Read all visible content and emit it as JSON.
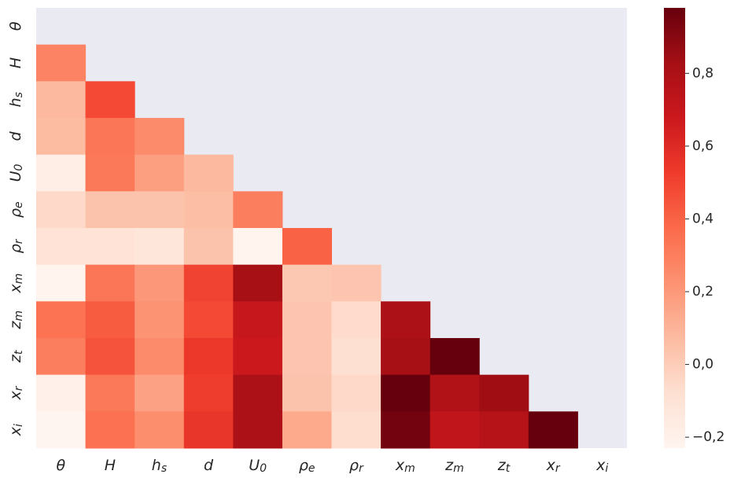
{
  "chart_data": {
    "type": "heatmap",
    "mask": "upper-triangle-and-diagonal",
    "title": "",
    "xlabel": "",
    "ylabel": "",
    "labels": [
      {
        "text": "θ",
        "base": "θ",
        "sub": ""
      },
      {
        "text": "H",
        "base": "H",
        "sub": ""
      },
      {
        "text": "h_s",
        "base": "h",
        "sub": "s"
      },
      {
        "text": "d",
        "base": "d",
        "sub": ""
      },
      {
        "text": "U_0",
        "base": "U",
        "sub": "0"
      },
      {
        "text": "ρ_e",
        "base": "ρ",
        "sub": "e"
      },
      {
        "text": "ρ_r",
        "base": "ρ",
        "sub": "r"
      },
      {
        "text": "x_m",
        "base": "x",
        "sub": "m"
      },
      {
        "text": "z_m",
        "base": "z",
        "sub": "m"
      },
      {
        "text": "z_t",
        "base": "z",
        "sub": "t"
      },
      {
        "text": "x_r",
        "base": "x",
        "sub": "r"
      },
      {
        "text": "x_i",
        "base": "x",
        "sub": "i"
      }
    ],
    "matrix": [
      [],
      [
        0.28
      ],
      [
        0.08,
        0.48
      ],
      [
        0.07,
        0.33,
        0.25
      ],
      [
        -0.18,
        0.32,
        0.18,
        0.08
      ],
      [
        -0.05,
        0.04,
        0.04,
        0.06,
        0.3
      ],
      [
        -0.1,
        -0.1,
        -0.12,
        0.04,
        -0.22,
        0.4
      ],
      [
        -0.22,
        0.33,
        0.2,
        0.5,
        0.82,
        0.02,
        0.03
      ],
      [
        0.34,
        0.42,
        0.22,
        0.48,
        0.7,
        0.03,
        -0.06,
        0.8
      ],
      [
        0.3,
        0.45,
        0.25,
        0.54,
        0.68,
        0.03,
        -0.08,
        0.82,
        0.98
      ],
      [
        -0.2,
        0.32,
        0.17,
        0.52,
        0.8,
        0.04,
        -0.05,
        0.98,
        0.78,
        0.84
      ],
      [
        -0.24,
        0.35,
        0.24,
        0.55,
        0.8,
        0.14,
        -0.07,
        0.95,
        0.72,
        0.76,
        0.99
      ]
    ],
    "colorbar": {
      "min": -0.23,
      "max": 0.98,
      "ticks": [
        -0.2,
        0.0,
        0.2,
        0.4,
        0.6,
        0.8
      ],
      "tick_labels": [
        "−0,2",
        "0,0",
        "0,2",
        "0,4",
        "0,6",
        "0,8"
      ],
      "colormap": "Reds"
    },
    "background_color": "#eaeaf2"
  }
}
